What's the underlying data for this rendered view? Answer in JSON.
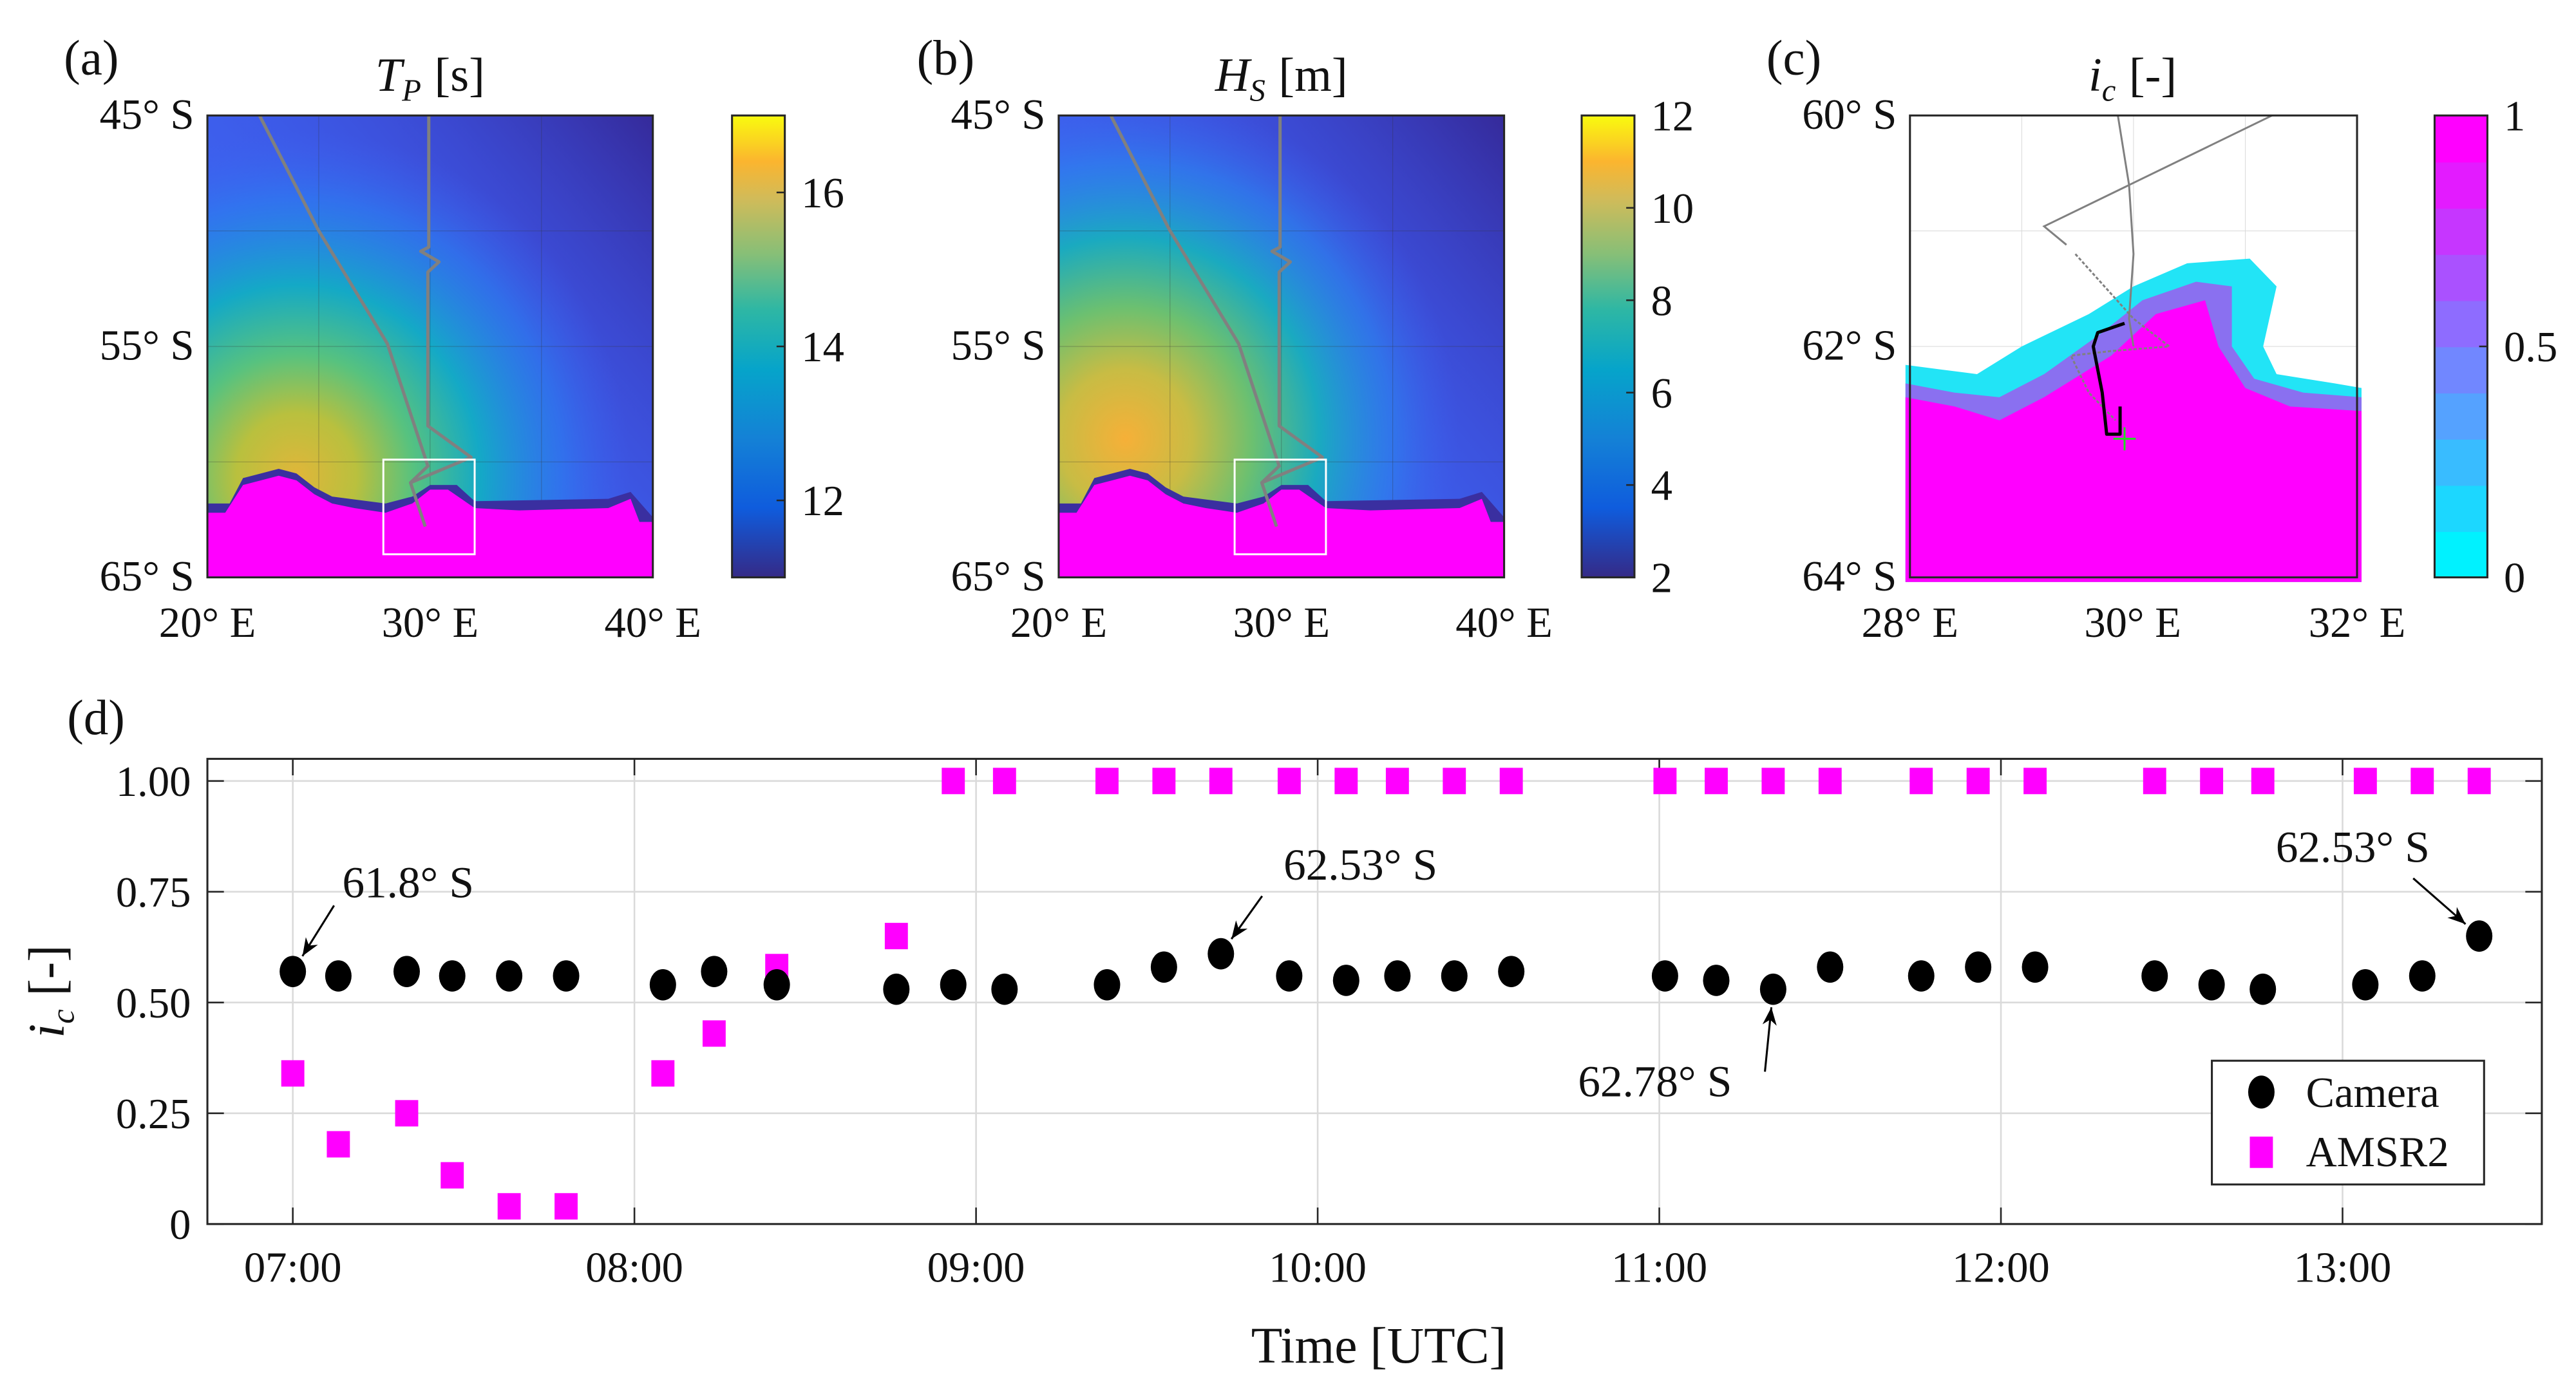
{
  "panels": [
    {
      "label": "(a)",
      "title": {
        "symbol": "T",
        "sub": "P",
        "unit": "[s]"
      },
      "yticks": [
        "45° S",
        "55° S",
        "65° S"
      ],
      "xticks": [
        "20° E",
        "30° E",
        "40° E"
      ],
      "colorbar": {
        "range": [
          11,
          17
        ],
        "ticks": [
          "12",
          "14",
          "16"
        ],
        "tick_values": [
          12,
          14,
          16
        ],
        "colormap": "parula"
      }
    },
    {
      "label": "(b)",
      "title": {
        "symbol": "H",
        "sub": "S",
        "unit": "[m]"
      },
      "yticks": [
        "45° S",
        "55° S",
        "65° S"
      ],
      "xticks": [
        "20° E",
        "30° E",
        "40° E"
      ],
      "colorbar": {
        "range": [
          2,
          12
        ],
        "ticks": [
          "2",
          "4",
          "6",
          "8",
          "10",
          "12"
        ],
        "tick_values": [
          2,
          4,
          6,
          8,
          10,
          12
        ],
        "colormap": "parula"
      }
    },
    {
      "label": "(c)",
      "title": {
        "symbol": "i",
        "sub": "c",
        "unit": "[-]"
      },
      "yticks": [
        "60° S",
        "62° S",
        "64° S"
      ],
      "xticks": [
        "28° E",
        "30° E",
        "32° E"
      ],
      "colorbar": {
        "range": [
          0,
          1
        ],
        "ticks": [
          "0",
          "0.5",
          "1"
        ],
        "tick_values": [
          0,
          0.5,
          1
        ],
        "colormap": "cyan-magenta"
      }
    }
  ],
  "colors": {
    "ice": "#ff00ff",
    "track": "#808080",
    "camera": "#000000",
    "amsr2": "#ff00ff",
    "start_marker": "#22dd22"
  },
  "chart_data": {
    "label": "(d)",
    "type": "scatter",
    "xlabel": "Time [UTC]",
    "ylabel": {
      "symbol": "i",
      "sub": "c",
      "unit": "[-]"
    },
    "xlim": [
      "06:45",
      "13:35"
    ],
    "ylim": [
      0,
      1.05
    ],
    "xticks": [
      "07:00",
      "08:00",
      "09:00",
      "10:00",
      "11:00",
      "12:00",
      "13:00"
    ],
    "yticks": [
      0,
      0.25,
      0.5,
      0.75,
      1.0
    ],
    "ytick_labels": [
      "0",
      "0.25",
      "0.50",
      "0.75",
      "1.00"
    ],
    "grid": true,
    "legend_position": "bottom-right",
    "series": [
      {
        "name": "Camera",
        "marker": "circle",
        "color": "#000000",
        "x": [
          "07:00",
          "07:08",
          "07:20",
          "07:28",
          "07:38",
          "07:48",
          "08:05",
          "08:14",
          "08:25",
          "08:46",
          "08:56",
          "09:05",
          "09:23",
          "09:33",
          "09:43",
          "09:55",
          "10:05",
          "10:14",
          "10:24",
          "10:34",
          "11:01",
          "11:10",
          "11:20",
          "11:30",
          "11:46",
          "11:56",
          "12:06",
          "12:27",
          "12:37",
          "12:46",
          "13:04",
          "13:14",
          "13:24"
        ],
        "y": [
          0.57,
          0.56,
          0.57,
          0.56,
          0.56,
          0.56,
          0.54,
          0.57,
          0.54,
          0.53,
          0.54,
          0.53,
          0.54,
          0.58,
          0.61,
          0.56,
          0.55,
          0.56,
          0.56,
          0.57,
          0.56,
          0.55,
          0.53,
          0.58,
          0.56,
          0.58,
          0.58,
          0.56,
          0.54,
          0.53,
          0.54,
          0.56,
          0.65
        ]
      },
      {
        "name": "AMSR2",
        "marker": "square",
        "color": "#ff00ff",
        "x": [
          "07:00",
          "07:08",
          "07:20",
          "07:28",
          "07:38",
          "07:48",
          "08:05",
          "08:14",
          "08:25",
          "08:46",
          "08:56",
          "09:05",
          "09:23",
          "09:33",
          "09:43",
          "09:55",
          "10:05",
          "10:14",
          "10:24",
          "10:34",
          "11:01",
          "11:10",
          "11:20",
          "11:30",
          "11:46",
          "11:56",
          "12:06",
          "12:27",
          "12:37",
          "12:46",
          "13:04",
          "13:14",
          "13:24"
        ],
        "y": [
          0.34,
          0.18,
          0.25,
          0.11,
          0.04,
          0.04,
          0.34,
          0.43,
          0.58,
          0.65,
          1,
          1,
          1,
          1,
          1,
          1,
          1,
          1,
          1,
          1,
          1,
          1,
          1,
          1,
          1,
          1,
          1,
          1,
          1,
          1,
          1,
          1,
          1
        ]
      }
    ],
    "annotations": [
      {
        "text": "61.8° S",
        "x": "07:00",
        "y": 0.57
      },
      {
        "text": "62.53° S",
        "x": "09:43",
        "y": 0.61
      },
      {
        "text": "62.78° S",
        "x": "11:20",
        "y": 0.53
      },
      {
        "text": "62.53° S",
        "x": "13:24",
        "y": 0.65
      }
    ]
  }
}
